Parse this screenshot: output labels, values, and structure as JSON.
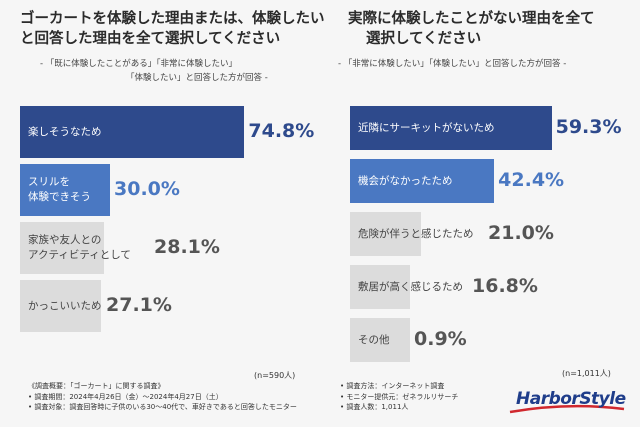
{
  "colors": {
    "dark_blue": "#2e4a8c",
    "mid_blue": "#4a78c2",
    "grey": "#dcdcdc",
    "value_dark": "#2e4a8c",
    "value_mid": "#4a78c2",
    "value_grey": "#555555"
  },
  "left": {
    "title_line1": "ゴーカートを体験した理由または、体験したい",
    "title_line2": "と回答した理由を全て選択してください",
    "sub_line1": "- 「既に体験したことがある」「非常に体験したい」",
    "sub_line2": "「体験したい」と回答した方が回答 -",
    "n_note": "(n=590人)"
  },
  "right": {
    "title_line1": "実際に体験したことがない理由を全て",
    "title_line2": "選択してください",
    "sub_line1": "- 「非常に体験したい」「体験したい」と回答した方が回答 -",
    "n_note": "(n=1,011人)"
  },
  "chart_data": [
    {
      "type": "bar",
      "orientation": "horizontal",
      "categories": [
        "楽しそうなため",
        "スリルを 体験できそう",
        "家族や友人との アクティビティとして",
        "かっこいいため"
      ],
      "category_lines": [
        [
          "楽しそうなため"
        ],
        [
          "スリルを",
          "体験できそう"
        ],
        [
          "家族や友人との",
          "アクティビティとして"
        ],
        [
          "かっこいいため"
        ]
      ],
      "values": [
        74.8,
        30.0,
        28.1,
        27.1
      ],
      "value_labels": [
        "74.8%",
        "30.0%",
        "28.1%",
        "27.1%"
      ],
      "bar_colors": [
        "#2e4a8c",
        "#4a78c2",
        "#dcdcdc",
        "#dcdcdc"
      ],
      "xlim": [
        0,
        100
      ]
    },
    {
      "type": "bar",
      "orientation": "horizontal",
      "categories": [
        "近隣にサーキットがないため",
        "機会がなかったため",
        "危険が伴うと感じたため",
        "敷居が高く感じるため",
        "その他"
      ],
      "category_lines": [
        [
          "近隣にサーキットがないため"
        ],
        [
          "機会がなかったため"
        ],
        [
          "危険が伴うと感じたため"
        ],
        [
          "敷居が高く感じるため"
        ],
        [
          "その他"
        ]
      ],
      "values": [
        59.3,
        42.4,
        21.0,
        16.8,
        0.9
      ],
      "value_labels": [
        "59.3%",
        "42.4%",
        "21.0%",
        "16.8%",
        "0.9%"
      ],
      "bar_colors": [
        "#2e4a8c",
        "#4a78c2",
        "#dcdcdc",
        "#dcdcdc",
        "#dcdcdc"
      ],
      "xlim": [
        0,
        100
      ]
    }
  ],
  "footer": {
    "left_lines": [
      "《調査概要：「ゴーカート」に関する調査》",
      "• 調査期間：2024年4月26日（金）～2024年4月27日（土）",
      "• 調査対象：調査回答時に子供のいる30～40代で、車好きであると回答したモニター"
    ],
    "right_lines": [
      "• 調査方法：インターネット調査",
      "• モニター提供元：ゼネラルリサーチ",
      "• 調査人数：1,011人"
    ]
  },
  "logo": {
    "text": "HarborStyle",
    "icon": "harbor-style-logo"
  }
}
